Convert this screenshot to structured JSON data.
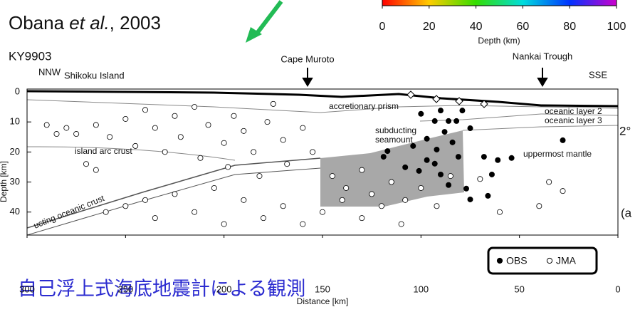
{
  "citation": {
    "author": "Obana ",
    "etal": "et al.",
    "year": ", 2003"
  },
  "japanese_title": "自己浮上式海底地震計による観測",
  "side_labels": [
    "2°",
    "(a"
  ],
  "chart_data": [
    {
      "type": "colorbar",
      "xlabel": "Depth (km)",
      "xlim": [
        0,
        100
      ],
      "xticks": [
        0,
        20,
        40,
        60,
        80,
        100
      ]
    },
    {
      "type": "scatter",
      "profile": "KY9903",
      "xlabel": "Distance [km]",
      "ylabel": "Depth [km]",
      "xlim": [
        300,
        0
      ],
      "ylim": [
        0,
        46
      ],
      "xticks": [
        300,
        250,
        200,
        150,
        100,
        50,
        0
      ],
      "yticks": [
        0,
        10,
        20,
        30,
        40
      ],
      "annotations": [
        "NNW",
        "Shikoku Island",
        "Cape Muroto",
        "Nankai Trough",
        "SSE",
        "accretionary prism",
        "oceanic layer 2",
        "oceanic layer 3",
        "subducting",
        "seamount",
        "island arc crust",
        "uppermost mantle",
        "ucting oceanic crust"
      ],
      "series": [
        {
          "name": "OBS",
          "color": "#000000",
          "x": [
            100,
            90,
            93,
            79,
            82,
            75,
            88,
            97,
            104,
            117,
            119,
            92,
            84,
            81,
            97,
            108,
            101,
            90,
            93,
            86,
            77,
            68,
            61,
            54,
            64,
            75,
            66,
            28,
            86
          ],
          "values": [
            7.3,
            6.2,
            9.7,
            6.2,
            9.7,
            12.1,
            13.3,
            15.6,
            18.0,
            19.7,
            21.6,
            19.2,
            16.8,
            21.6,
            22.7,
            25.1,
            26.3,
            27.5,
            23.9,
            31.0,
            32.2,
            21.6,
            22.7,
            22.0,
            27.5,
            35.8,
            34.6,
            16.1,
            9.7
          ]
        },
        {
          "name": "JMA",
          "color": "#ffffff",
          "x": [
            280,
            275,
            265,
            258,
            250,
            245,
            240,
            235,
            230,
            225,
            222,
            215,
            212,
            208,
            200,
            198,
            195,
            190,
            185,
            182,
            178,
            175,
            170,
            168,
            160,
            155,
            290,
            285,
            260,
            250,
            240,
            235,
            225,
            215,
            205,
            200,
            190,
            180,
            170,
            160,
            150,
            140,
            130,
            120,
            110,
            145,
            138,
            130,
            125,
            115,
            108,
            100,
            92,
            85,
            60,
            40,
            28,
            35,
            70,
            265,
            270
          ],
          "values": [
            12,
            14,
            11,
            15,
            9,
            18,
            6,
            12,
            20,
            8,
            15,
            5,
            22,
            11,
            17,
            25,
            8,
            13,
            20,
            28,
            10,
            4,
            16,
            24,
            12,
            20,
            11,
            14,
            40,
            38,
            36,
            42,
            34,
            40,
            32,
            44,
            36,
            42,
            38,
            44,
            40,
            36,
            42,
            38,
            44,
            28,
            32,
            26,
            34,
            30,
            36,
            32,
            38,
            28,
            40,
            38,
            33,
            30,
            29,
            26,
            24
          ]
        }
      ]
    }
  ]
}
